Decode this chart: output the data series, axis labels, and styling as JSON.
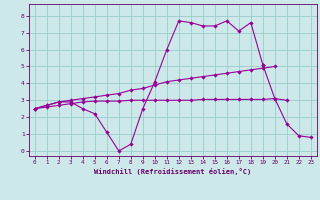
{
  "x": [
    0,
    1,
    2,
    3,
    4,
    5,
    6,
    7,
    8,
    9,
    10,
    11,
    12,
    13,
    14,
    15,
    16,
    17,
    18,
    19,
    20,
    21,
    22,
    23
  ],
  "line1": [
    2.5,
    2.7,
    2.9,
    2.9,
    2.5,
    2.2,
    1.1,
    0.0,
    0.4,
    2.5,
    4.1,
    6.0,
    7.7,
    7.6,
    7.4,
    7.4,
    7.7,
    7.1,
    7.6,
    5.1,
    null,
    null,
    null,
    null
  ],
  "line2": [
    2.5,
    2.7,
    2.9,
    3.0,
    3.1,
    3.2,
    3.3,
    3.4,
    3.6,
    3.7,
    3.9,
    4.1,
    4.2,
    4.3,
    4.4,
    4.5,
    4.6,
    4.7,
    4.8,
    4.9,
    5.0,
    null,
    null,
    null
  ],
  "line3": [
    2.5,
    2.6,
    2.7,
    2.8,
    2.9,
    2.95,
    2.95,
    2.95,
    3.0,
    3.0,
    3.0,
    3.0,
    3.0,
    3.0,
    3.05,
    3.05,
    3.05,
    3.05,
    3.05,
    3.05,
    3.1,
    3.0,
    null,
    null
  ],
  "line4": [
    null,
    null,
    null,
    null,
    null,
    null,
    null,
    null,
    null,
    null,
    null,
    null,
    null,
    null,
    null,
    null,
    null,
    null,
    null,
    5.1,
    3.1,
    1.6,
    0.9,
    0.8
  ],
  "color": "#990099",
  "bg_color": "#cce8e8",
  "grid_color": "#99cccc",
  "xlabel": "Windchill (Refroidissement éolien,°C)",
  "ylim": [
    -0.3,
    8.7
  ],
  "xlim": [
    -0.5,
    23.5
  ],
  "yticks": [
    0,
    1,
    2,
    3,
    4,
    5,
    6,
    7,
    8
  ],
  "xticks": [
    0,
    1,
    2,
    3,
    4,
    5,
    6,
    7,
    8,
    9,
    10,
    11,
    12,
    13,
    14,
    15,
    16,
    17,
    18,
    19,
    20,
    21,
    22,
    23
  ]
}
